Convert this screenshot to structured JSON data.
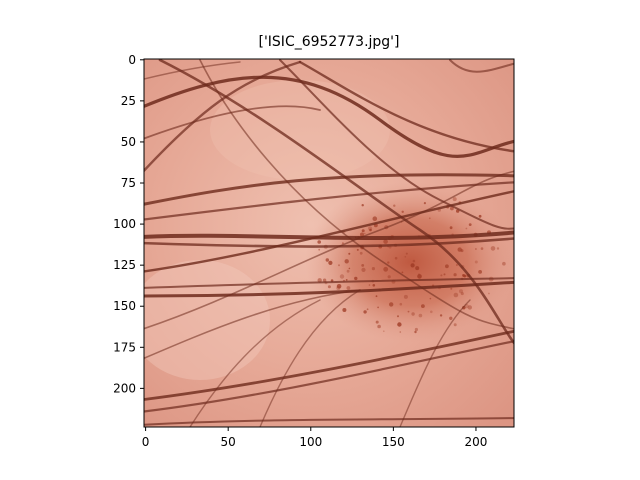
{
  "title": "['ISIC_6952773.jpg']",
  "image": {
    "subject": "dermoscopy image of skin with a reddish-brown pigmented lesion crossed by many dark hairs",
    "colors": {
      "skin_light": "#efc0b0",
      "skin_mid": "#e3a18f",
      "skin_dark": "#d98f7c",
      "lesion": "#b84a30",
      "lesion_dots": "#9e3a24",
      "hair": "#6e2a1c"
    }
  },
  "axes": {
    "x_ticks": [
      "0",
      "50",
      "100",
      "150",
      "200"
    ],
    "y_ticks": [
      "0",
      "25",
      "50",
      "75",
      "100",
      "125",
      "150",
      "175",
      "200"
    ],
    "xlim": [
      0,
      224
    ],
    "ylim": [
      224,
      0
    ]
  }
}
